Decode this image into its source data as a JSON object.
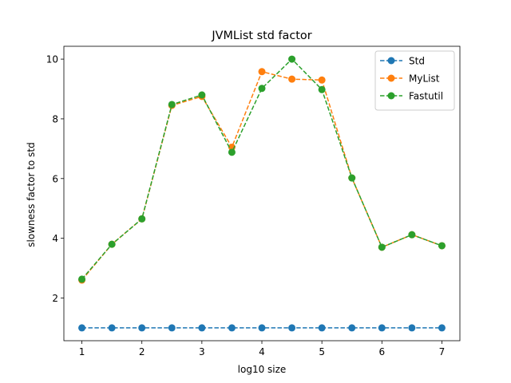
{
  "chart_data": {
    "type": "line",
    "title": "JVMList std factor",
    "xlabel": "log10 size",
    "ylabel": "slowness factor to std",
    "x": [
      1,
      1.5,
      2,
      2.5,
      3,
      3.5,
      4,
      4.5,
      5,
      5.5,
      6,
      6.5,
      7
    ],
    "xlim": [
      0.7,
      7.3
    ],
    "ylim": [
      0.57,
      10.43
    ],
    "xticks": [
      1,
      2,
      3,
      4,
      5,
      6,
      7
    ],
    "yticks": [
      2,
      4,
      6,
      8,
      10
    ],
    "grid": false,
    "legend_position": "top-right",
    "line_style": "dashed",
    "marker": "circle",
    "series": [
      {
        "name": "Std",
        "color": "#1f77b4",
        "values": [
          1,
          1,
          1,
          1,
          1,
          1,
          1,
          1,
          1,
          1,
          1,
          1,
          1
        ]
      },
      {
        "name": "MyList",
        "color": "#ff7f0e",
        "values": [
          2.6,
          3.8,
          4.65,
          8.45,
          8.75,
          7.05,
          9.58,
          9.33,
          9.3,
          6.02,
          3.7,
          4.12,
          3.75
        ]
      },
      {
        "name": "Fastutil",
        "color": "#2ca02c",
        "values": [
          2.63,
          3.8,
          4.65,
          8.48,
          8.8,
          6.88,
          9.02,
          10.0,
          8.98,
          6.02,
          3.7,
          4.12,
          3.75
        ]
      }
    ]
  }
}
